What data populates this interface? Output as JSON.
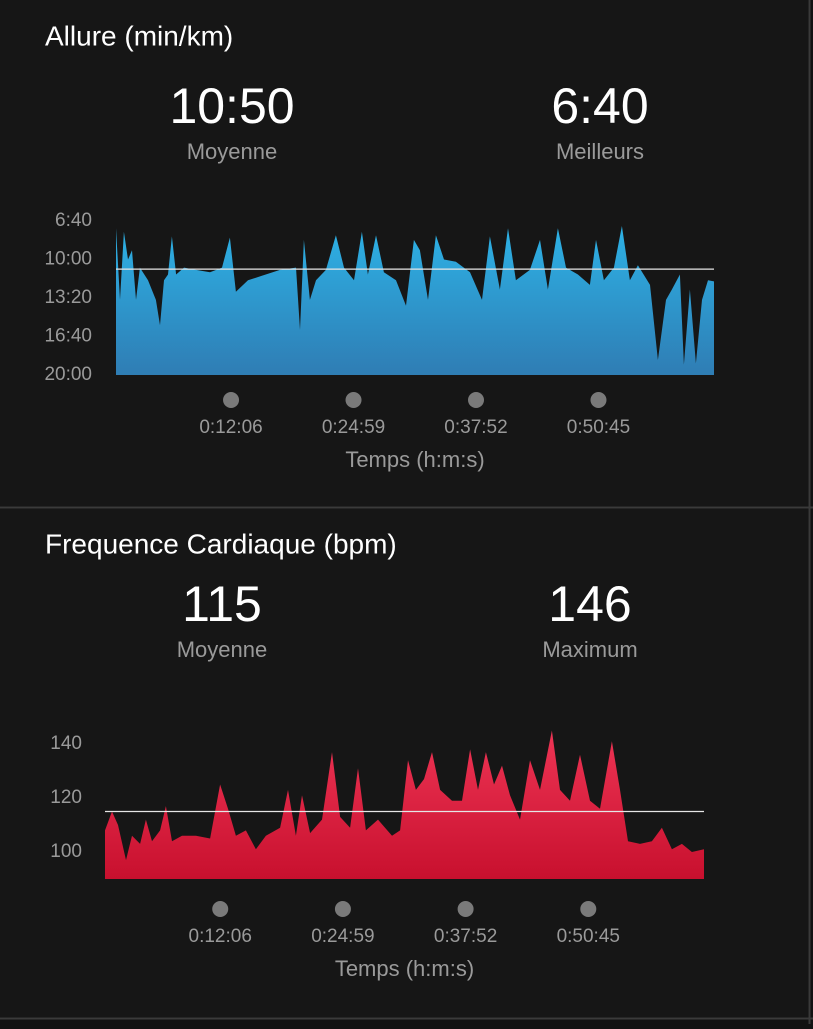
{
  "chart_data": [
    {
      "type": "area",
      "title": "Allure (min/km)",
      "stats": [
        {
          "value": 10.833,
          "label": "10:50",
          "name": "Moyenne",
          "line": true
        },
        {
          "value": 6.667,
          "label": "6:40",
          "name": "Meilleurs"
        }
      ],
      "x": [
        0,
        25,
        50,
        76,
        101,
        126,
        151,
        202,
        252,
        278,
        303,
        328,
        353,
        379,
        429,
        505,
        593,
        669,
        719,
        757,
        833,
        921,
        1035,
        1136,
        1161,
        1186,
        1224,
        1262,
        1325,
        1388,
        1439,
        1502,
        1552,
        1590,
        1641,
        1691,
        1767,
        1830,
        1880,
        1918,
        1969,
        2019,
        2070,
        2145,
        2234,
        2310,
        2360,
        2423,
        2474,
        2524,
        2612,
        2676,
        2726,
        2789,
        2840,
        2915,
        2991,
        3029,
        3079,
        3142,
        3193,
        3243,
        3294,
        3370,
        3420,
        3471,
        3508,
        3559,
        3584,
        3622,
        3660,
        3698,
        3736,
        3774
      ],
      "values": [
        7.3,
        13.5,
        7.6,
        10.0,
        9.2,
        13.5,
        10.7,
        11.8,
        13.5,
        15.7,
        11.8,
        11.3,
        8.0,
        11.3,
        10.7,
        10.9,
        11.1,
        10.7,
        8.1,
        12.8,
        11.8,
        11.4,
        10.9,
        10.7,
        16.1,
        8.3,
        13.5,
        11.8,
        10.9,
        7.9,
        10.7,
        11.8,
        7.6,
        11.3,
        7.9,
        11.1,
        11.8,
        14.0,
        8.3,
        9.2,
        13.5,
        7.9,
        10.0,
        10.2,
        11.1,
        13.5,
        8.0,
        12.6,
        7.3,
        11.8,
        10.9,
        8.3,
        12.6,
        7.3,
        10.7,
        11.3,
        12.2,
        8.3,
        11.8,
        10.7,
        7.1,
        11.8,
        10.5,
        12.2,
        18.7,
        13.5,
        12.6,
        11.3,
        19.1,
        12.6,
        19.0,
        13.5,
        11.8,
        11.9
      ],
      "color": "#2db2e6",
      "color2": "#2f7db4",
      "xlim": [
        0,
        3774
      ],
      "xticks": [
        {
          "value": 726,
          "label": "0:12:06"
        },
        {
          "value": 1499,
          "label": "0:24:59"
        },
        {
          "value": 2272,
          "label": "0:37:52"
        },
        {
          "value": 3045,
          "label": "0:50:45"
        }
      ],
      "x_label": "Temps (h:m:s)",
      "ylim": [
        20,
        6.667
      ],
      "yticks": [
        {
          "value": 6.667,
          "label": "6:40"
        },
        {
          "value": 10,
          "label": "10:00"
        },
        {
          "value": 13.333,
          "label": "13:20"
        },
        {
          "value": 16.667,
          "label": "16:40"
        },
        {
          "value": 20,
          "label": "20:00"
        }
      ]
    },
    {
      "type": "area",
      "title": "Frequence Cardiaque (bpm)",
      "stats": [
        {
          "value": 115,
          "name": "Moyenne",
          "line": true
        },
        {
          "value": 146,
          "name": "Maximum"
        }
      ],
      "x": [
        0,
        44,
        82,
        132,
        170,
        221,
        258,
        296,
        347,
        384,
        422,
        485,
        573,
        662,
        725,
        775,
        825,
        888,
        951,
        1014,
        1103,
        1153,
        1203,
        1241,
        1292,
        1367,
        1430,
        1481,
        1544,
        1594,
        1644,
        1720,
        1808,
        1859,
        1909,
        1959,
        2010,
        2060,
        2111,
        2186,
        2249,
        2300,
        2350,
        2400,
        2451,
        2501,
        2552,
        2615,
        2678,
        2741,
        2816,
        2867,
        2930,
        2993,
        3056,
        3119,
        3194,
        3245,
        3295,
        3371,
        3446,
        3509,
        3572,
        3635,
        3698,
        3774
      ],
      "values": [
        108,
        115,
        110,
        97,
        106,
        103,
        112,
        104,
        108,
        117,
        104,
        106,
        106,
        105,
        125,
        116,
        106,
        108,
        101,
        106,
        109,
        123,
        106,
        121,
        107,
        112,
        137,
        113,
        109,
        131,
        108,
        112,
        106,
        108,
        134,
        123,
        127,
        137,
        123,
        119,
        119,
        138,
        123,
        137,
        125,
        132,
        121,
        112,
        134,
        123,
        145,
        123,
        119,
        136,
        119,
        116,
        141,
        123,
        104,
        103,
        104,
        109,
        101,
        103,
        100,
        101
      ],
      "color": "#ee3555",
      "color2": "#c8102e",
      "xlim": [
        0,
        3774
      ],
      "xticks": [
        {
          "value": 726,
          "label": "0:12:06"
        },
        {
          "value": 1499,
          "label": "0:24:59"
        },
        {
          "value": 2272,
          "label": "0:37:52"
        },
        {
          "value": 3045,
          "label": "0:50:45"
        }
      ],
      "x_label": "Temps (h:m:s)",
      "ylim": [
        90,
        150
      ],
      "yticks": [
        100,
        120,
        140
      ]
    }
  ]
}
